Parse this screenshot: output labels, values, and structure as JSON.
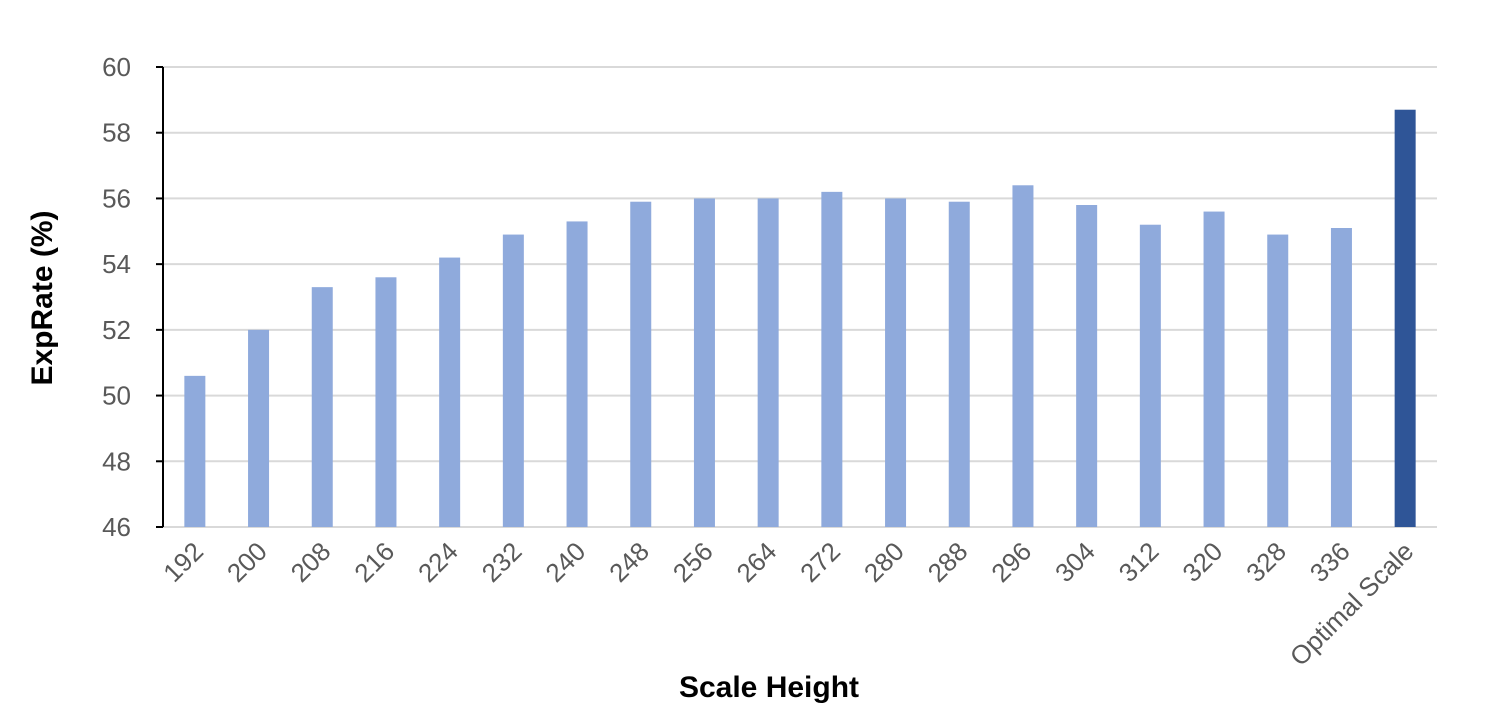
{
  "chart_data": {
    "type": "bar",
    "title": "",
    "xlabel": "Scale Height",
    "ylabel": "ExpRate (%)",
    "ylim": [
      46,
      60
    ],
    "yticks": [
      46,
      48,
      50,
      52,
      54,
      56,
      58,
      60
    ],
    "grid": true,
    "categories": [
      "192",
      "200",
      "208",
      "216",
      "224",
      "232",
      "240",
      "248",
      "256",
      "264",
      "272",
      "280",
      "288",
      "296",
      "304",
      "312",
      "320",
      "328",
      "336",
      "Optimal Scale"
    ],
    "values": [
      50.6,
      52.0,
      53.3,
      53.6,
      54.2,
      54.9,
      55.3,
      55.9,
      56.0,
      56.0,
      56.2,
      56.0,
      55.9,
      56.4,
      55.8,
      55.2,
      55.6,
      54.9,
      55.1,
      58.7
    ],
    "colors": {
      "default_bar": "#8faadc",
      "highlight_bar": "#2f5597",
      "grid": "#d9d9d9",
      "axis": "#000000"
    },
    "highlight_category": "Optimal Scale"
  }
}
